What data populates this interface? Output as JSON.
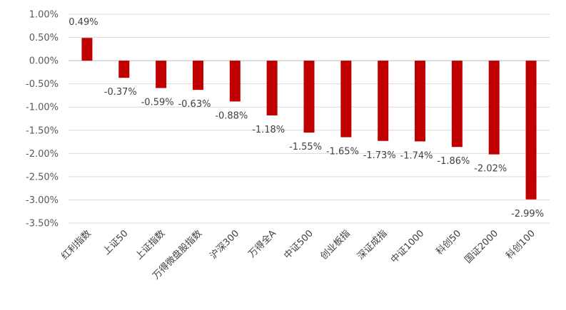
{
  "chart_data": {
    "type": "bar",
    "title": "",
    "xlabel": "",
    "ylabel": "",
    "categories": [
      "红利指数",
      "上证50",
      "上证指数",
      "万得微盘股指数",
      "沪深300",
      "万得全A",
      "中证500",
      "创业板指",
      "深证成指",
      "中证1000",
      "科创50",
      "国证2000",
      "科创100"
    ],
    "values": [
      0.49,
      -0.37,
      -0.59,
      -0.63,
      -0.88,
      -1.18,
      -1.55,
      -1.65,
      -1.73,
      -1.74,
      -1.86,
      -2.02,
      -2.99
    ],
    "data_labels": [
      "0.49%",
      "-0.37%",
      "-0.59%",
      "-0.63%",
      "-0.88%",
      "-1.18%",
      "-1.55%",
      "-1.65%",
      "-1.73%",
      "-1.74%",
      "-1.86%",
      "-2.02%",
      "-2.99%"
    ],
    "ylim": [
      -3.5,
      1.0
    ],
    "yticks": [
      1.0,
      0.5,
      0.0,
      -0.5,
      -1.0,
      -1.5,
      -2.0,
      -2.5,
      -3.0,
      -3.5
    ],
    "ytick_labels": [
      "1.00%",
      "0.50%",
      "0.00%",
      "-0.50%",
      "-1.00%",
      "-1.50%",
      "-2.00%",
      "-2.50%",
      "-3.00%",
      "-3.50%"
    ],
    "grid": true,
    "legend": "none",
    "bar_color": "#c00000"
  }
}
